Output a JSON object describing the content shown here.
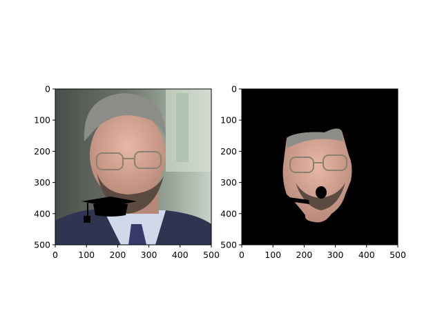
{
  "figure": {
    "background": "#ffffff",
    "axis_color": "#000000"
  },
  "chart_data": [
    {
      "type": "image",
      "content": "photo of a bearded man with glasses in a suit and tie, a black graduation cap overlay drawn at the mouth",
      "xlim": [
        0,
        500
      ],
      "ylim": [
        500,
        0
      ],
      "xticks": [
        0,
        100,
        200,
        300,
        400,
        500
      ],
      "yticks": [
        0,
        100,
        200,
        300,
        400,
        500
      ],
      "title": "",
      "xlabel": "",
      "ylabel": ""
    },
    {
      "type": "image",
      "content": "segmented face of the same man on a black background, mouth region cut out",
      "background": "#000000",
      "xlim": [
        0,
        500
      ],
      "ylim": [
        500,
        0
      ],
      "xticks": [
        0,
        100,
        200,
        300,
        400,
        500
      ],
      "yticks": [
        0,
        100,
        200,
        300,
        400,
        500
      ],
      "title": "",
      "xlabel": "",
      "ylabel": ""
    }
  ]
}
